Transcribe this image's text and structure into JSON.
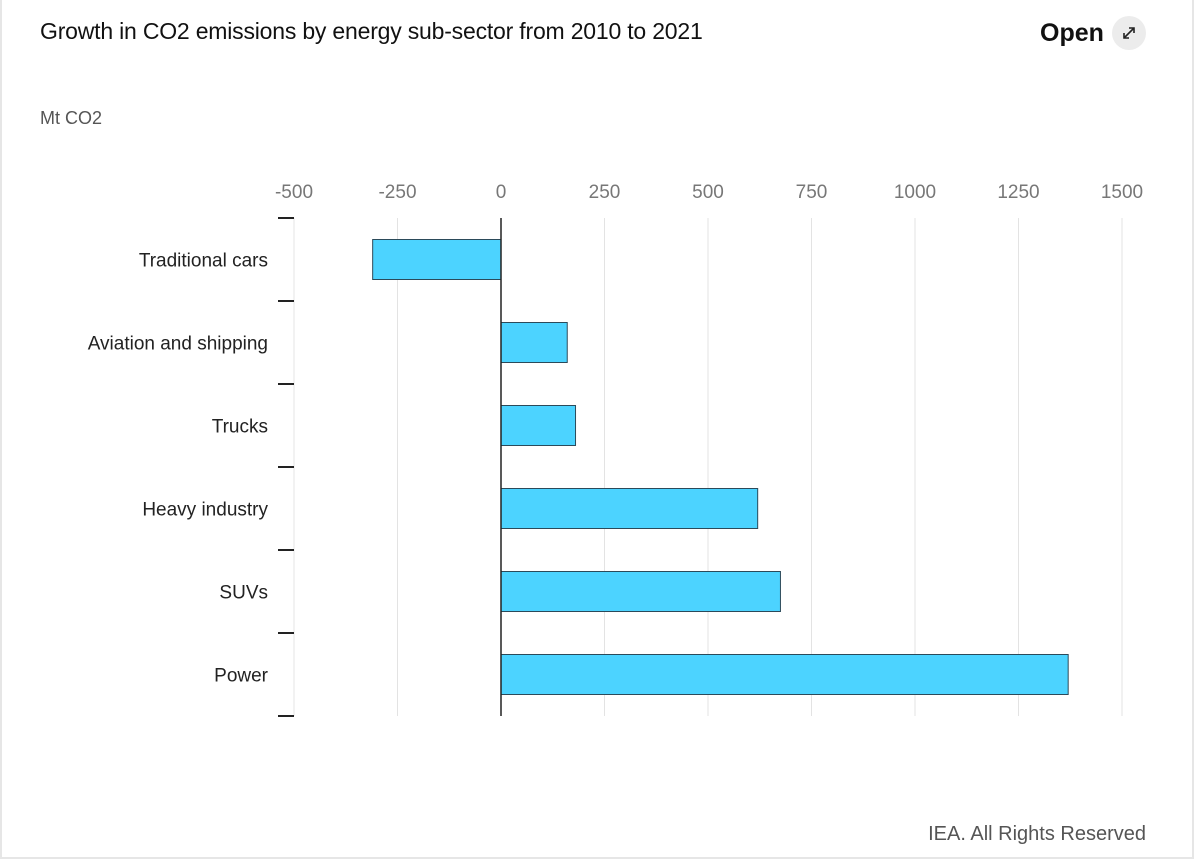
{
  "header": {
    "title": "Growth in CO2 emissions by energy sub-sector from 2010 to 2021",
    "open_label": "Open",
    "open_icon": "expand-arrows-icon"
  },
  "unit_label": "Mt CO2",
  "footer": {
    "credit": "IEA. All Rights Reserved"
  },
  "colors": {
    "bar_fill": "#4cd3ff",
    "bar_stroke": "#2b4a5a",
    "grid": "#e3e3e3",
    "axis": "#222222"
  },
  "chart_data": {
    "type": "bar",
    "orientation": "horizontal",
    "title": "Growth in CO2 emissions by energy sub-sector from 2010 to 2021",
    "xlabel": "Mt CO2",
    "ylabel": "",
    "xlim": [
      -500,
      1500
    ],
    "ticks": [
      -500,
      -250,
      0,
      250,
      500,
      750,
      1000,
      1250,
      1500
    ],
    "tick_labels": [
      "-500",
      "-250",
      "0",
      "250",
      "500",
      "750",
      "1000",
      "1250",
      "1500"
    ],
    "grid": true,
    "categories": [
      "Traditional cars",
      "Aviation and shipping",
      "Trucks",
      "Heavy industry",
      "SUVs",
      "Power"
    ],
    "values": [
      -310,
      160,
      180,
      620,
      675,
      1370
    ]
  }
}
